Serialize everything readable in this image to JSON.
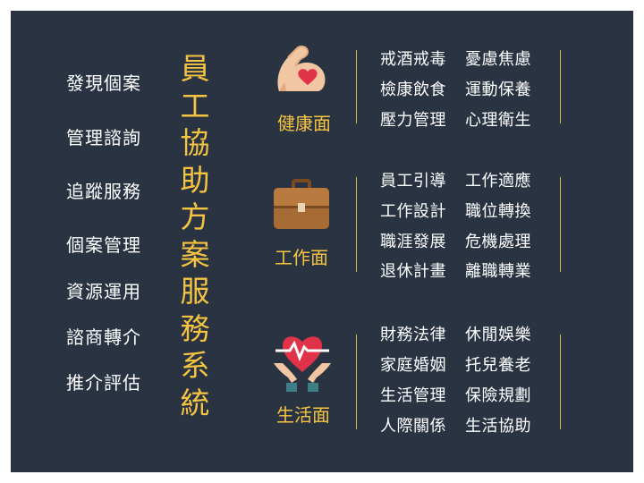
{
  "colors": {
    "background": "#2a3342",
    "accent": "#f5c542",
    "text": "#ffffff"
  },
  "left_list": [
    "發現個案",
    "管理諮詢",
    "追蹤服務",
    "個案管理",
    "資源運用",
    "諮商轉介",
    "推介評估"
  ],
  "title_chars": [
    "員",
    "工",
    "協",
    "助",
    "方",
    "案",
    "服",
    "務",
    "系",
    "統"
  ],
  "categories": [
    {
      "label": "健康面",
      "icon": "flexed-arm-heart-icon",
      "items": [
        [
          "戒酒戒毒",
          "憂慮焦慮"
        ],
        [
          "檢康飲食",
          "運動保養"
        ],
        [
          "壓力管理",
          "心理衛生"
        ]
      ]
    },
    {
      "label": "工作面",
      "icon": "briefcase-icon",
      "items": [
        [
          "員工引導",
          "工作適應"
        ],
        [
          "工作設計",
          "職位轉換"
        ],
        [
          "職涯發展",
          "危機處理"
        ],
        [
          "退休計畫",
          "離職轉業"
        ]
      ]
    },
    {
      "label": "生活面",
      "icon": "hands-heart-pulse-icon",
      "items": [
        [
          "財務法律",
          "休閒娛樂"
        ],
        [
          "家庭婚姻",
          "托兒養老"
        ],
        [
          "生活管理",
          "保險規劃"
        ],
        [
          "人際關係",
          "生活協助"
        ]
      ]
    }
  ]
}
